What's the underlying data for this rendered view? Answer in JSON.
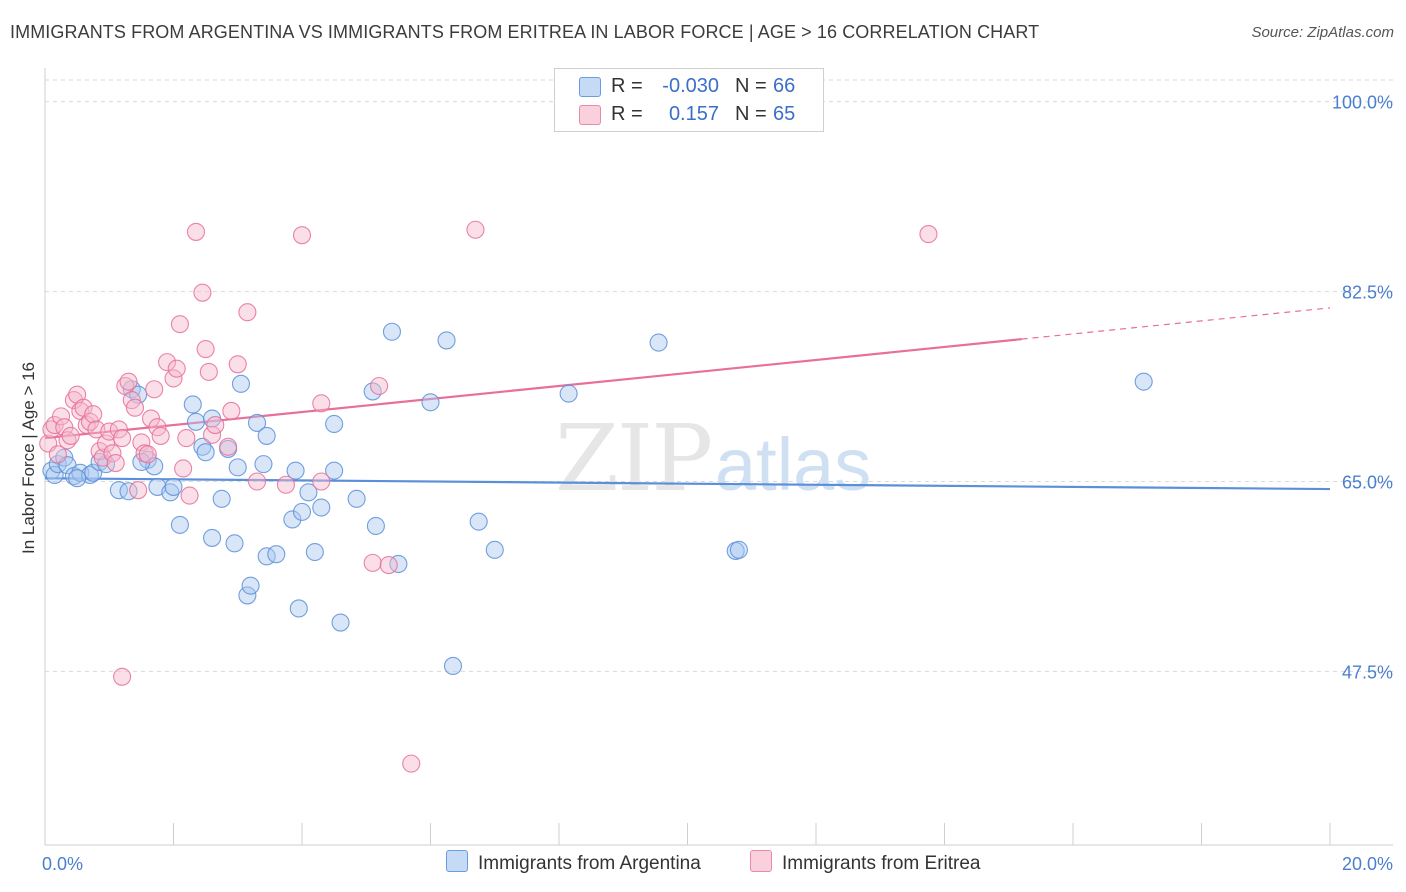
{
  "header": {
    "title": "IMMIGRANTS FROM ARGENTINA VS IMMIGRANTS FROM ERITREA IN LABOR FORCE | AGE > 16 CORRELATION CHART",
    "source": "Source: ZipAtlas.com"
  },
  "watermark": {
    "zip": "ZIP",
    "atlas": "atlas"
  },
  "legend": {
    "rows": [
      {
        "r_label": "R =",
        "r_value": "-0.030",
        "n_label": "N =",
        "n_value": "66",
        "color": "#a9c8f0"
      },
      {
        "r_label": "R =",
        "r_value": "0.157",
        "n_label": "N =",
        "n_value": "65",
        "color": "#f5b8cb"
      }
    ]
  },
  "chart_data": {
    "type": "scatter",
    "title": "IMMIGRANTS FROM ARGENTINA VS IMMIGRANTS FROM ERITREA IN LABOR FORCE | AGE > 16 CORRELATION CHART",
    "xlabel": "",
    "ylabel": "In Labor Force | Age > 16",
    "xlim": [
      0,
      20
    ],
    "ylim": [
      31.5,
      102
    ],
    "x_tick_labels": [
      "0.0%",
      "20.0%"
    ],
    "y_ticks": [
      47.5,
      65.0,
      82.5,
      100.0
    ],
    "y_tick_labels": [
      "47.5%",
      "65.0%",
      "82.5%",
      "100.0%"
    ],
    "legend_placement": "top-center",
    "series": [
      {
        "name": "Immigrants from Argentina",
        "color": "#5b8fd9",
        "fill": "#a9c8f0",
        "trend": {
          "x": [
            0,
            20
          ],
          "y": [
            65.3,
            64.3
          ],
          "solid_until": 20
        },
        "points": [
          [
            0.1,
            66.0
          ],
          [
            0.15,
            65.6
          ],
          [
            0.2,
            66.6
          ],
          [
            0.3,
            67.2
          ],
          [
            0.35,
            66.5
          ],
          [
            0.45,
            65.5
          ],
          [
            0.55,
            65.8
          ],
          [
            0.7,
            65.6
          ],
          [
            0.75,
            65.8
          ],
          [
            0.85,
            66.8
          ],
          [
            0.95,
            66.6
          ],
          [
            1.15,
            64.2
          ],
          [
            1.3,
            64.1
          ],
          [
            1.35,
            73.5
          ],
          [
            1.45,
            73.0
          ],
          [
            1.6,
            67.0
          ],
          [
            1.7,
            66.4
          ],
          [
            1.75,
            64.5
          ],
          [
            1.95,
            64.0
          ],
          [
            2.0,
            64.5
          ],
          [
            2.1,
            61.0
          ],
          [
            2.3,
            72.1
          ],
          [
            2.35,
            70.5
          ],
          [
            2.45,
            68.2
          ],
          [
            2.5,
            67.7
          ],
          [
            2.6,
            59.8
          ],
          [
            2.6,
            70.8
          ],
          [
            2.75,
            63.4
          ],
          [
            2.85,
            68.0
          ],
          [
            2.95,
            59.3
          ],
          [
            3.0,
            66.3
          ],
          [
            3.05,
            74.0
          ],
          [
            3.15,
            54.5
          ],
          [
            3.2,
            55.4
          ],
          [
            3.3,
            70.4
          ],
          [
            3.4,
            66.6
          ],
          [
            3.45,
            58.1
          ],
          [
            3.6,
            58.3
          ],
          [
            3.85,
            61.5
          ],
          [
            3.9,
            66.0
          ],
          [
            3.95,
            53.3
          ],
          [
            4.0,
            62.2
          ],
          [
            4.1,
            64.0
          ],
          [
            4.2,
            58.5
          ],
          [
            4.3,
            62.6
          ],
          [
            4.5,
            70.3
          ],
          [
            4.5,
            66.0
          ],
          [
            4.6,
            52.0
          ],
          [
            4.85,
            63.4
          ],
          [
            5.1,
            73.3
          ],
          [
            5.15,
            60.9
          ],
          [
            5.4,
            78.8
          ],
          [
            5.5,
            57.4
          ],
          [
            6.0,
            72.3
          ],
          [
            6.25,
            78.0
          ],
          [
            6.35,
            48.0
          ],
          [
            6.75,
            61.3
          ],
          [
            7.0,
            58.7
          ],
          [
            8.15,
            73.1
          ],
          [
            9.55,
            77.8
          ],
          [
            10.75,
            58.6
          ],
          [
            10.8,
            58.7
          ],
          [
            17.1,
            74.2
          ],
          [
            3.45,
            69.2
          ],
          [
            1.5,
            66.8
          ],
          [
            0.5,
            65.3
          ]
        ]
      },
      {
        "name": "Immigrants from Eritrea",
        "color": "#e76f98",
        "fill": "#f5b8cb",
        "trend": {
          "x": [
            0,
            20
          ],
          "y": [
            69.0,
            81.0
          ],
          "solid_until": 15.2
        },
        "points": [
          [
            0.05,
            68.5
          ],
          [
            0.1,
            69.8
          ],
          [
            0.15,
            70.2
          ],
          [
            0.2,
            67.5
          ],
          [
            0.25,
            71.0
          ],
          [
            0.3,
            70.0
          ],
          [
            0.35,
            68.8
          ],
          [
            0.4,
            69.2
          ],
          [
            0.45,
            72.5
          ],
          [
            0.5,
            73.0
          ],
          [
            0.55,
            71.5
          ],
          [
            0.6,
            71.8
          ],
          [
            0.65,
            70.2
          ],
          [
            0.7,
            70.5
          ],
          [
            0.75,
            71.2
          ],
          [
            0.8,
            69.8
          ],
          [
            0.85,
            67.8
          ],
          [
            0.9,
            67.2
          ],
          [
            0.95,
            68.5
          ],
          [
            1.0,
            69.6
          ],
          [
            1.05,
            67.6
          ],
          [
            1.1,
            66.7
          ],
          [
            1.15,
            69.8
          ],
          [
            1.2,
            69.0
          ],
          [
            1.25,
            73.8
          ],
          [
            1.3,
            74.2
          ],
          [
            1.35,
            72.5
          ],
          [
            1.4,
            71.8
          ],
          [
            1.45,
            64.2
          ],
          [
            1.5,
            68.6
          ],
          [
            1.55,
            67.6
          ],
          [
            1.6,
            67.5
          ],
          [
            1.65,
            70.8
          ],
          [
            1.7,
            73.5
          ],
          [
            1.75,
            70.0
          ],
          [
            1.8,
            69.2
          ],
          [
            1.9,
            76.0
          ],
          [
            2.0,
            74.5
          ],
          [
            2.05,
            75.4
          ],
          [
            2.1,
            79.5
          ],
          [
            2.15,
            66.2
          ],
          [
            2.2,
            69.0
          ],
          [
            2.25,
            63.7
          ],
          [
            2.35,
            88.0
          ],
          [
            2.45,
            82.4
          ],
          [
            2.5,
            77.2
          ],
          [
            2.55,
            75.1
          ],
          [
            2.6,
            69.3
          ],
          [
            2.65,
            70.2
          ],
          [
            2.85,
            68.2
          ],
          [
            2.9,
            71.5
          ],
          [
            3.0,
            75.8
          ],
          [
            3.15,
            80.6
          ],
          [
            3.3,
            65.0
          ],
          [
            3.75,
            64.7
          ],
          [
            4.0,
            87.7
          ],
          [
            4.3,
            72.2
          ],
          [
            4.3,
            65.0
          ],
          [
            5.1,
            57.5
          ],
          [
            5.2,
            73.8
          ],
          [
            5.35,
            57.3
          ],
          [
            5.7,
            39.0
          ],
          [
            6.7,
            88.2
          ],
          [
            13.75,
            87.8
          ],
          [
            1.2,
            47.0
          ]
        ]
      }
    ]
  }
}
